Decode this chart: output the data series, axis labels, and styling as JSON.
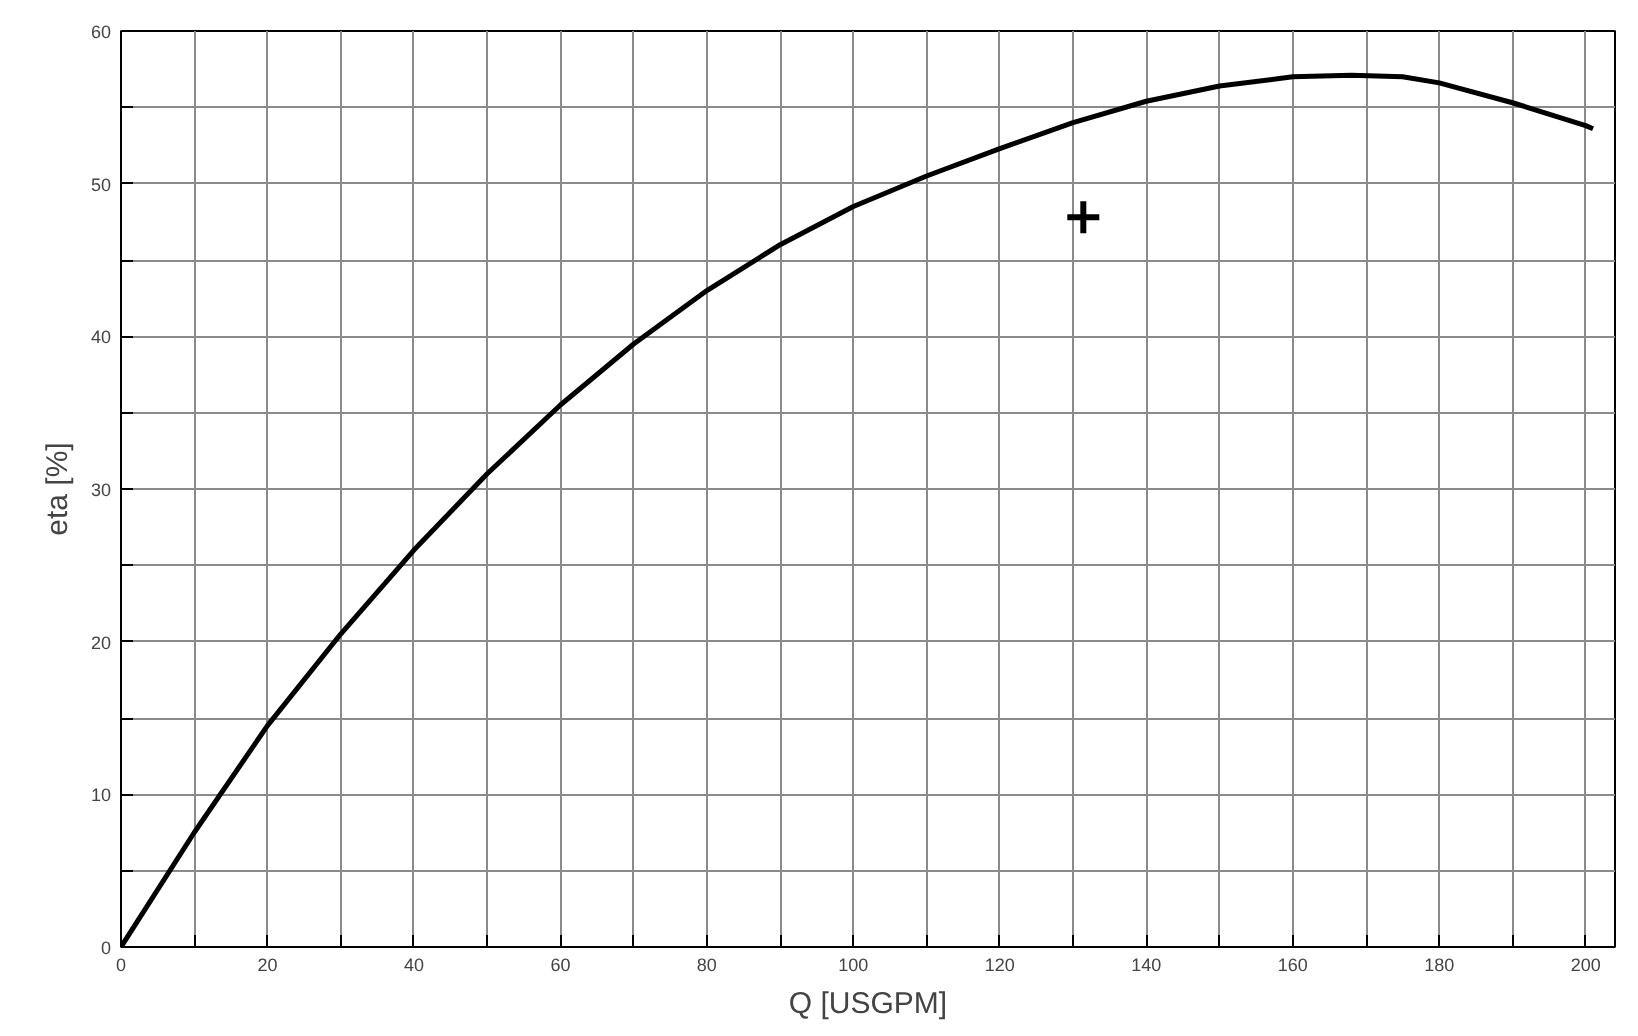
{
  "chart_data": {
    "type": "line",
    "xlabel": "Q [USGPM]",
    "ylabel": "eta [%]",
    "xlim": [
      0,
      204
    ],
    "ylim": [
      0,
      60
    ],
    "xticks": [
      0,
      {
        "value": 10,
        "label": null
      },
      20,
      {
        "value": 30,
        "label": null
      },
      40,
      {
        "value": 50,
        "label": null
      },
      60,
      {
        "value": 70,
        "label": null
      },
      80,
      {
        "value": 90,
        "label": null
      },
      100,
      {
        "value": 110,
        "label": null
      },
      120,
      {
        "value": 130,
        "label": null
      },
      140,
      {
        "value": 150,
        "label": null
      },
      160,
      {
        "value": 170,
        "label": null
      },
      180,
      {
        "value": 190,
        "label": null
      },
      200
    ],
    "yticks": [
      0,
      {
        "value": 5,
        "label": null
      },
      10,
      {
        "value": 15,
        "label": null
      },
      20,
      {
        "value": 25,
        "label": null
      },
      30,
      {
        "value": 35,
        "label": null
      },
      40,
      {
        "value": 45,
        "label": null
      },
      50,
      {
        "value": 55,
        "label": null
      },
      60
    ],
    "grid": true,
    "line_style": "solid",
    "marker": "none",
    "series": [
      {
        "color": "#000000",
        "x": [
          0,
          10,
          20,
          30,
          40,
          50,
          60,
          70,
          80,
          90,
          100,
          110,
          120,
          130,
          140,
          150,
          160,
          168,
          175,
          180,
          190,
          200,
          201
        ],
        "values": [
          0,
          7.5,
          14.5,
          20.5,
          26,
          31,
          35.5,
          39.5,
          43,
          46,
          48.5,
          50.5,
          52.3,
          54,
          55.4,
          56.4,
          57,
          57.1,
          57,
          56.6,
          55.3,
          53.8,
          53.6
        ]
      },
      {
        "type": "scatter",
        "marker": "cross",
        "color": "#000000",
        "x": [
          131.4
        ],
        "values": [
          47.8
        ]
      }
    ]
  }
}
